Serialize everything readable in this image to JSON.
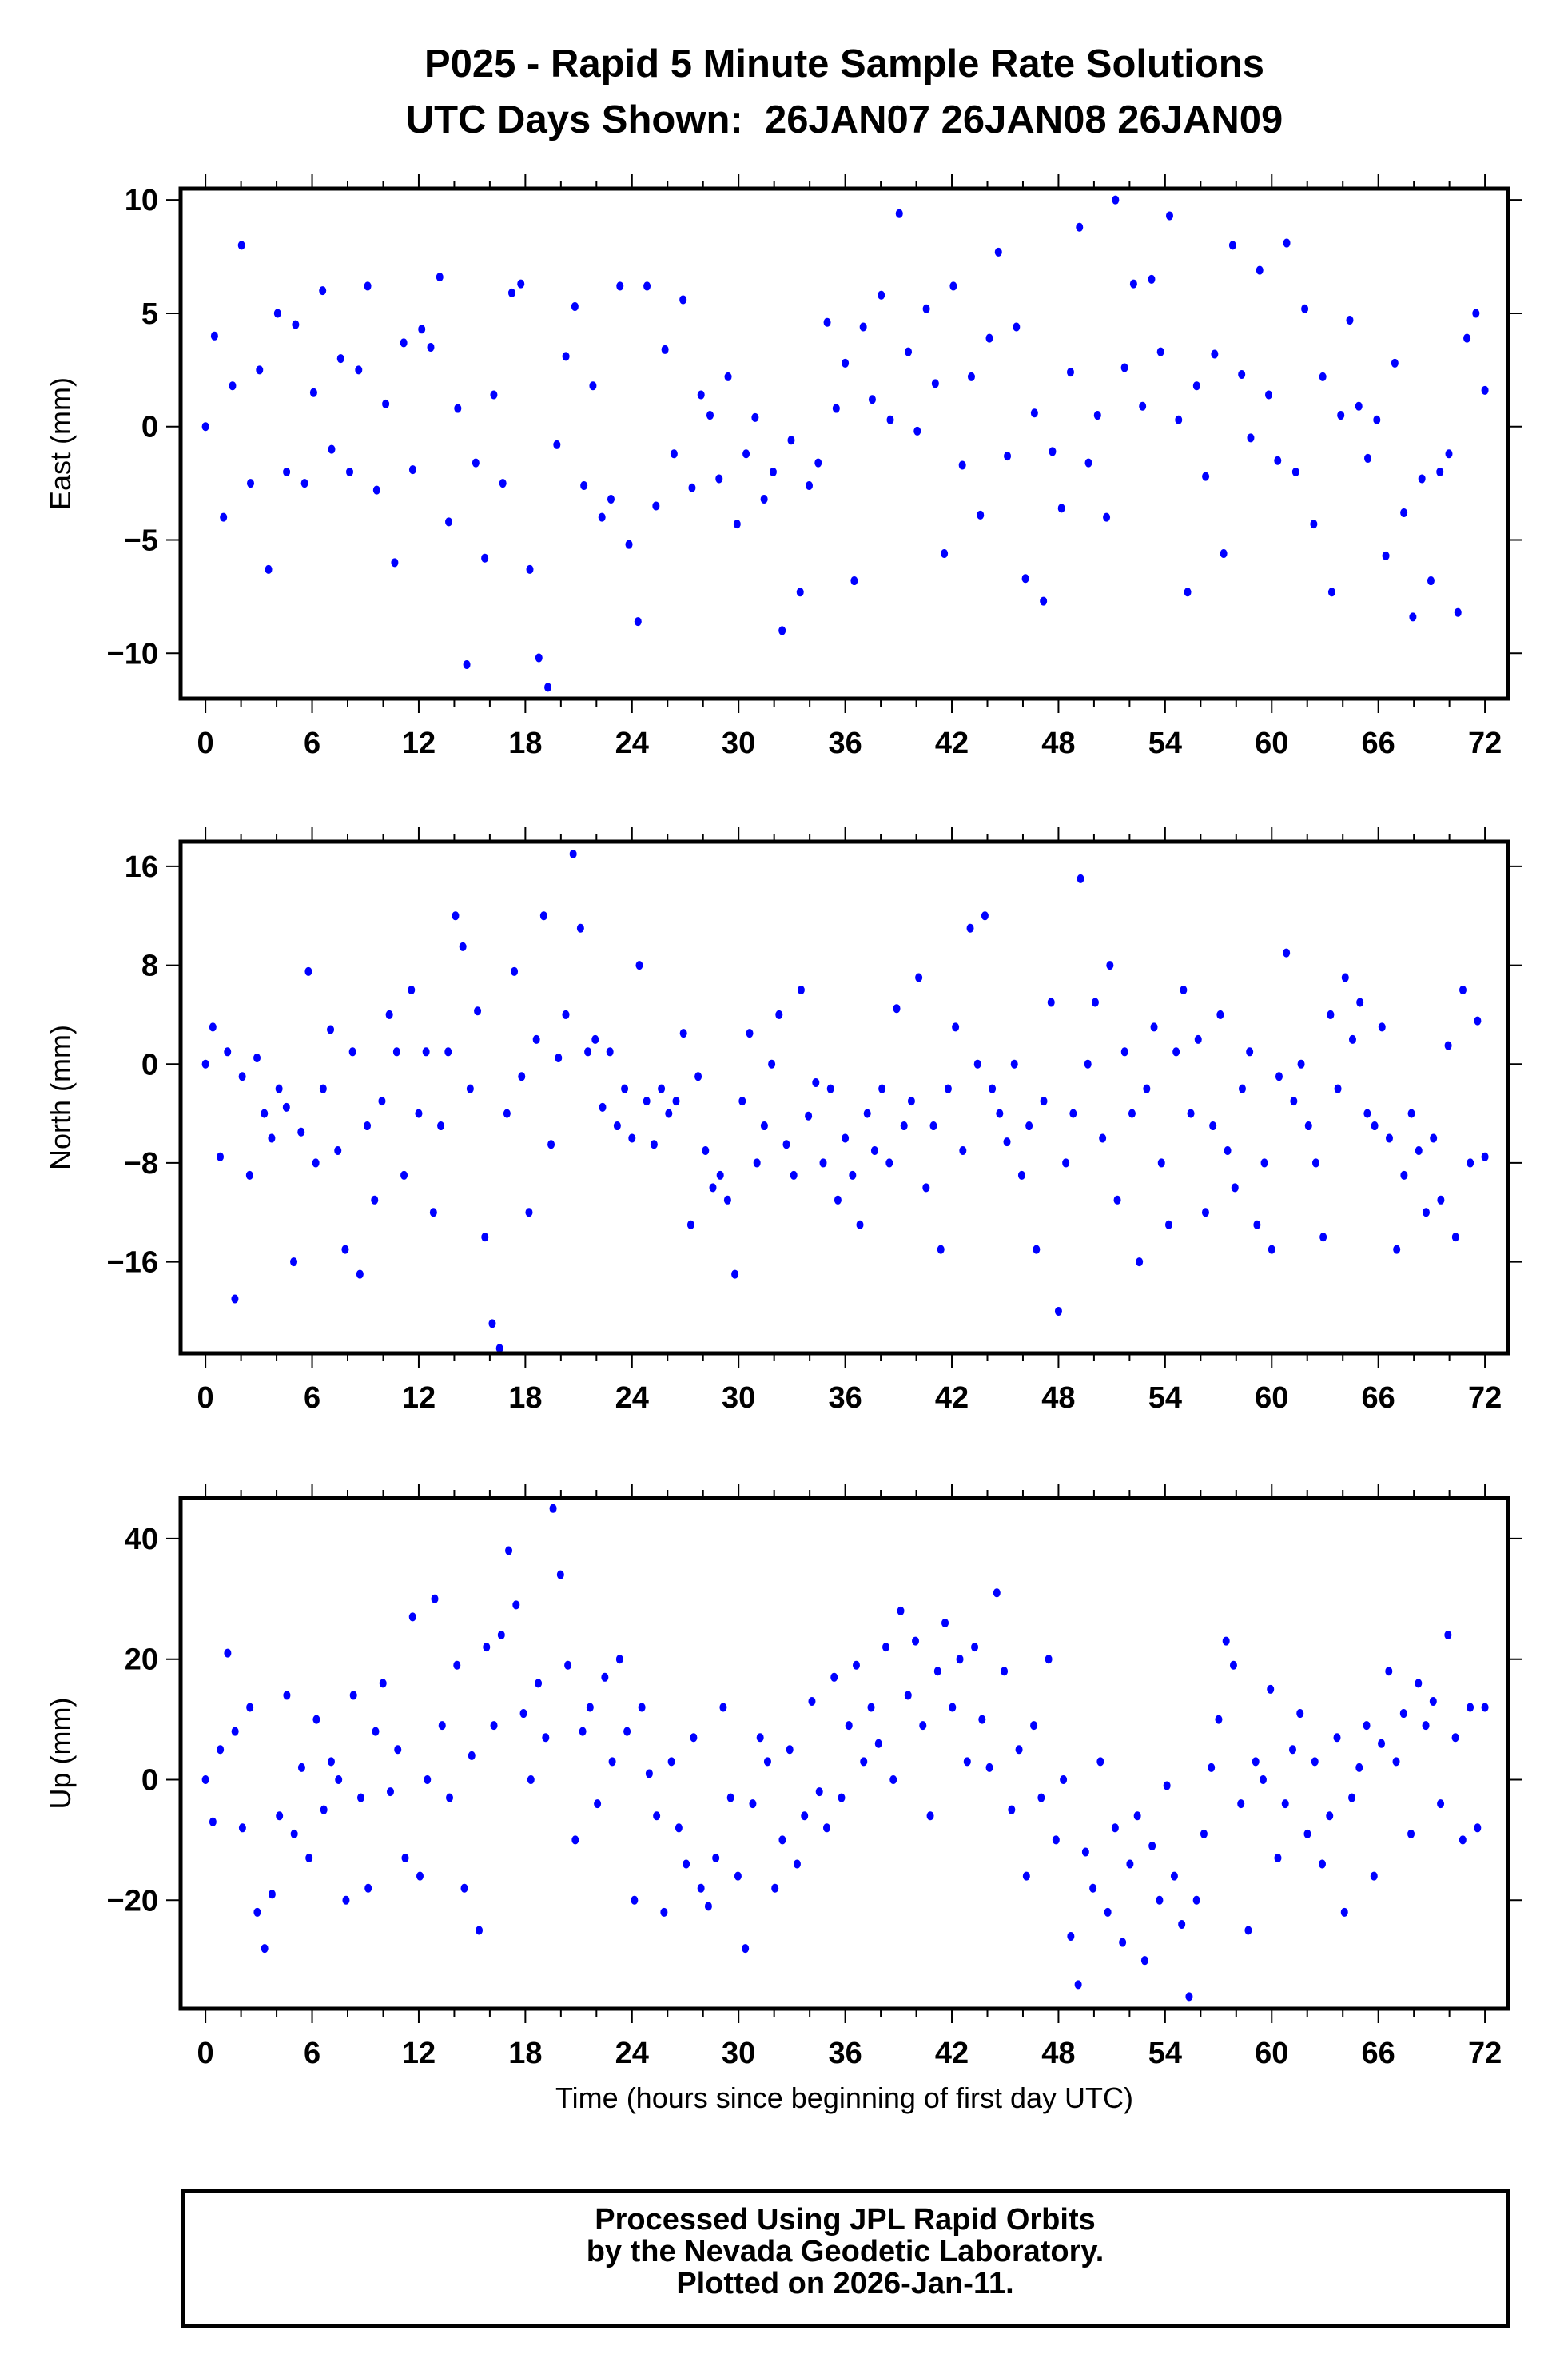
{
  "title": {
    "line1": "P025 - Rapid 5 Minute Sample Rate Solutions",
    "line2": "UTC Days Shown:  26JAN07 26JAN08 26JAN09"
  },
  "footer": {
    "line1": "Processed Using JPL Rapid Orbits",
    "line2": "by the Nevada Geodetic Laboratory.",
    "line3": "Plotted on 2026-Jan-11."
  },
  "chart_data": [
    {
      "type": "scatter",
      "name": "east",
      "ylabel": "East (mm)",
      "xlabel": "",
      "xlim": [
        -1.4,
        73.3
      ],
      "ylim": [
        -12,
        10.5
      ],
      "xticks": [
        0,
        6,
        12,
        18,
        24,
        30,
        36,
        42,
        48,
        54,
        60,
        66,
        72
      ],
      "yticks": [
        -10,
        -5,
        0,
        5,
        10
      ],
      "x_range_hours": [
        0,
        72
      ],
      "color": "#0000ff",
      "values": [
        0,
        4,
        -4,
        1.8,
        8,
        -2.5,
        2.5,
        -6.3,
        5,
        -2,
        4.5,
        -2.5,
        1.5,
        6,
        -1,
        3,
        -2,
        2.5,
        6.2,
        -2.8,
        1,
        -6,
        3.7,
        -1.9,
        4.3,
        3.5,
        6.6,
        -4.2,
        0.8,
        -10.5,
        -1.6,
        -5.8,
        1.4,
        -2.5,
        5.9,
        6.3,
        -6.3,
        -10.2,
        -11.5,
        -0.8,
        3.1,
        5.3,
        -2.6,
        1.8,
        -4,
        -3.2,
        6.2,
        -5.2,
        -8.6,
        6.2,
        -3.5,
        3.4,
        -1.2,
        5.6,
        -2.7,
        1.4,
        0.5,
        -2.3,
        2.2,
        -4.3,
        -1.2,
        0.4,
        -3.2,
        -2,
        -9,
        -0.6,
        -7.3,
        -2.6,
        -1.6,
        4.6,
        0.8,
        2.8,
        -6.8,
        4.4,
        1.2,
        5.8,
        0.3,
        9.4,
        3.3,
        -0.2,
        5.2,
        1.9,
        -5.6,
        6.2,
        -1.7,
        2.2,
        -3.9,
        3.9,
        7.7,
        -1.3,
        4.4,
        -6.7,
        0.6,
        -7.7,
        -1.1,
        -3.6,
        2.4,
        8.8,
        -1.6,
        0.5,
        -4,
        10,
        2.6,
        6.3,
        0.9,
        6.5,
        3.3,
        9.3,
        0.3,
        -7.3,
        1.8,
        -2.2,
        3.2,
        -5.6,
        8,
        2.3,
        -0.5,
        6.9,
        1.4,
        -1.5,
        8.1,
        -2,
        5.2,
        -4.3,
        2.2,
        -7.3,
        0.5,
        4.7,
        0.9,
        -1.4,
        0.3,
        -5.7,
        2.8,
        -3.8,
        -8.4,
        -2.3,
        -6.8,
        -2,
        -1.2,
        -8.2,
        3.9,
        5,
        1.6
      ]
    },
    {
      "type": "scatter",
      "name": "north",
      "ylabel": "North (mm)",
      "xlabel": "",
      "xlim": [
        -1.4,
        73.3
      ],
      "ylim": [
        -23.4,
        18
      ],
      "xticks": [
        0,
        6,
        12,
        18,
        24,
        30,
        36,
        42,
        48,
        54,
        60,
        66,
        72
      ],
      "yticks": [
        -16,
        -8,
        0,
        8,
        16
      ],
      "x_range_hours": [
        0,
        72
      ],
      "color": "#0000ff",
      "values": [
        0,
        3,
        -7.5,
        1,
        -19,
        -1,
        -9,
        0.5,
        -4,
        -6,
        -2,
        -3.5,
        -16,
        -5.5,
        7.5,
        -8,
        -2,
        2.8,
        -7,
        -15,
        1,
        -17,
        -5,
        -11,
        -3,
        4,
        1,
        -9,
        6,
        -4,
        1,
        -12,
        -5,
        1,
        12,
        9.5,
        -2,
        4.3,
        -14,
        -21,
        -23,
        -4,
        7.5,
        -1,
        -12,
        2,
        12,
        -6.5,
        0.5,
        4,
        17,
        11,
        1,
        2,
        -3.5,
        1,
        -5,
        -2,
        -6,
        8,
        -3,
        -6.5,
        -2,
        -4,
        -3,
        2.5,
        -13,
        -1,
        -7,
        -10,
        -9,
        -11,
        -17,
        -3,
        2.5,
        -8,
        -5,
        0,
        4,
        -6.5,
        -9,
        6,
        -4.2,
        -1.5,
        -8,
        -2,
        -11,
        -6,
        -9,
        -13,
        -4,
        -7,
        -2,
        -8,
        4.5,
        -5,
        -3,
        7,
        -10,
        -5,
        -15,
        -2,
        3,
        -7,
        11,
        0,
        12,
        -2,
        -4,
        -6.3,
        0,
        -9,
        -5,
        -15,
        -3,
        5,
        -20,
        -8,
        -4,
        15,
        0,
        5,
        -6,
        8,
        -11,
        1,
        -4,
        -16,
        -2,
        3,
        -8,
        -13,
        1,
        6,
        -4,
        2,
        -12,
        -5,
        4,
        -7,
        -10,
        -2,
        1,
        -13,
        -8,
        -15,
        -1,
        9,
        -3,
        0,
        -5,
        -8,
        -14,
        4,
        -2,
        7,
        2,
        5,
        -4,
        -5,
        3,
        -6,
        -15,
        -9,
        -4,
        -7,
        -12,
        -6,
        -11,
        1.5,
        -14,
        6,
        -8,
        3.5,
        -7.5
      ]
    },
    {
      "type": "scatter",
      "name": "up",
      "ylabel": "Up (mm)",
      "xlabel": "Time (hours since beginning of first day UTC)",
      "xlim": [
        -1.4,
        73.3
      ],
      "ylim": [
        -38,
        46.75
      ],
      "xticks": [
        0,
        6,
        12,
        18,
        24,
        30,
        36,
        42,
        48,
        54,
        60,
        66,
        72
      ],
      "yticks": [
        -20,
        0,
        20,
        40
      ],
      "x_range_hours": [
        0,
        72
      ],
      "color": "#0000ff",
      "values": [
        0,
        -7,
        5,
        21,
        8,
        -8,
        12,
        -22,
        -28,
        -19,
        -6,
        14,
        -9,
        2,
        -13,
        10,
        -5,
        3,
        0,
        -20,
        14,
        -3,
        -18,
        8,
        16,
        -2,
        5,
        -13,
        27,
        -16,
        0,
        30,
        9,
        -3,
        19,
        -18,
        4,
        -25,
        22,
        9,
        24,
        38,
        29,
        11,
        0,
        16,
        7,
        45,
        34,
        19,
        -10,
        8,
        12,
        -4,
        17,
        3,
        20,
        8,
        -20,
        12,
        1,
        -6,
        -22,
        3,
        -8,
        -14,
        7,
        -18,
        -21,
        -13,
        12,
        -3,
        -16,
        -28,
        -4,
        7,
        3,
        -18,
        -10,
        5,
        -14,
        -6,
        13,
        -2,
        -8,
        17,
        -3,
        9,
        19,
        3,
        12,
        6,
        22,
        0,
        28,
        14,
        23,
        9,
        -6,
        18,
        26,
        12,
        20,
        3,
        22,
        10,
        2,
        31,
        18,
        -5,
        5,
        -16,
        9,
        -3,
        20,
        -10,
        0,
        -26,
        -34,
        -12,
        -18,
        3,
        -22,
        -8,
        -27,
        -14,
        -6,
        -30,
        -11,
        -20,
        -1,
        -16,
        -24,
        -36,
        -20,
        -9,
        2,
        10,
        23,
        19,
        -4,
        -25,
        3,
        0,
        15,
        -13,
        -4,
        5,
        11,
        -9,
        3,
        -14,
        -6,
        7,
        -22,
        -3,
        2,
        9,
        -16,
        6,
        18,
        3,
        11,
        -9,
        16,
        9,
        13,
        -4,
        24,
        7,
        -10,
        12,
        -8,
        12
      ]
    }
  ]
}
